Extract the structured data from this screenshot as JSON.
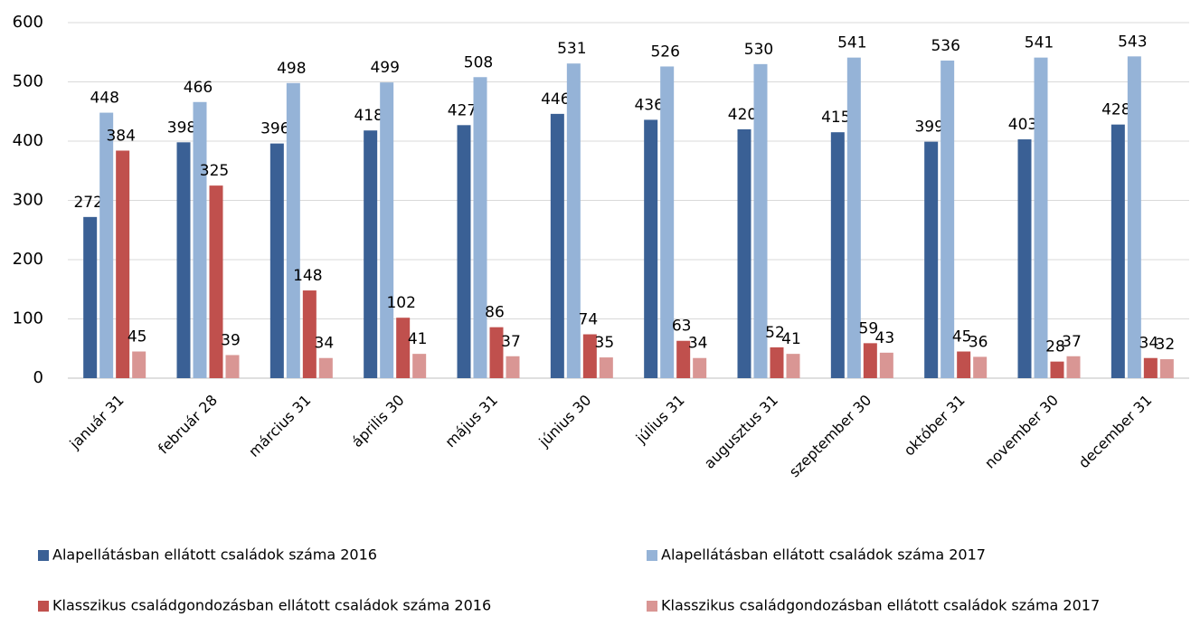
{
  "chart_data": {
    "type": "bar",
    "categories": [
      "január 31",
      "február 28",
      "március 31",
      "április 30",
      "május 31",
      "június 30",
      "július 31",
      "augusztus 31",
      "szeptember 30",
      "október 31",
      "november 30",
      "december 31"
    ],
    "series": [
      {
        "name": "Alapellátásban ellátott családok száma 2016",
        "color": "#3a6095",
        "values": [
          272,
          398,
          396,
          418,
          427,
          446,
          436,
          420,
          415,
          399,
          403,
          428
        ]
      },
      {
        "name": "Alapellátásban ellátott családok száma 2017",
        "color": "#95b3d7",
        "values": [
          448,
          466,
          498,
          499,
          508,
          531,
          526,
          530,
          541,
          536,
          541,
          543
        ]
      },
      {
        "name": "Klasszikus családgondozásban ellátott családok száma 2016",
        "color": "#c0504d",
        "values": [
          384,
          325,
          148,
          102,
          86,
          74,
          63,
          52,
          59,
          45,
          28,
          34
        ]
      },
      {
        "name": "Klasszikus családgondozásban ellátott családok száma 2017",
        "color": "#d99694",
        "values": [
          45,
          39,
          34,
          41,
          37,
          35,
          34,
          41,
          43,
          36,
          37,
          32
        ]
      }
    ],
    "ylim": [
      0,
      600
    ],
    "yticks": [
      0,
      100,
      200,
      300,
      400,
      500,
      600
    ],
    "grid": true
  }
}
